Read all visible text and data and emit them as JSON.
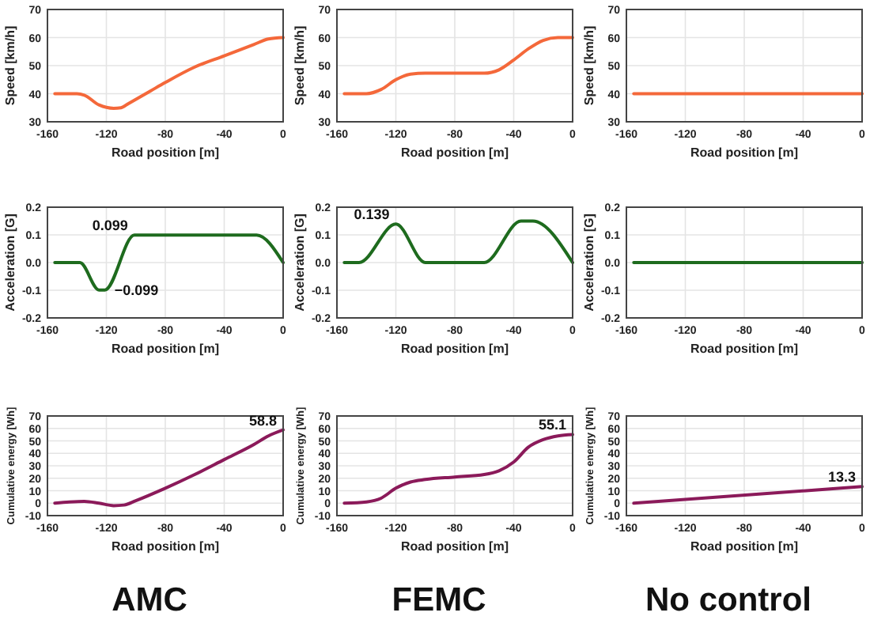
{
  "chart_data": [
    {
      "type": "line",
      "xlabel": "Road position [m]",
      "ylabel": "Speed [km/h]",
      "xlim": [
        -160,
        0
      ],
      "xticks": [
        -160,
        -120,
        -80,
        -40,
        0
      ],
      "ylim": [
        30,
        70
      ],
      "yticks": [
        30,
        40,
        50,
        60,
        70
      ],
      "grid": true,
      "series": [
        {
          "color": "#f4683a",
          "x": [
            -155,
            -140,
            -135,
            -125,
            -115,
            -110,
            -105,
            -90,
            -80,
            -60,
            -40,
            -20,
            -10,
            0
          ],
          "values": [
            40,
            40,
            39.5,
            36,
            34.8,
            35,
            36.5,
            41,
            44,
            49.5,
            53.5,
            57.5,
            59.5,
            60
          ]
        }
      ]
    },
    {
      "type": "line",
      "xlabel": "Road position [m]",
      "ylabel": "Speed [km/h]",
      "xlim": [
        -160,
        0
      ],
      "xticks": [
        -160,
        -120,
        -80,
        -40,
        0
      ],
      "ylim": [
        30,
        70
      ],
      "yticks": [
        30,
        40,
        50,
        60,
        70
      ],
      "grid": true,
      "series": [
        {
          "color": "#f4683a",
          "x": [
            -155,
            -140,
            -130,
            -120,
            -110,
            -100,
            -60,
            -50,
            -40,
            -30,
            -20,
            -10,
            0
          ],
          "values": [
            40,
            40,
            41.5,
            45,
            47,
            47.3,
            47.3,
            48.5,
            52,
            56,
            59,
            60,
            60
          ]
        }
      ]
    },
    {
      "type": "line",
      "xlabel": "Road position [m]",
      "ylabel": "Speed [km/h]",
      "xlim": [
        -160,
        0
      ],
      "xticks": [
        -160,
        -120,
        -80,
        -40,
        0
      ],
      "ylim": [
        30,
        70
      ],
      "yticks": [
        30,
        40,
        50,
        60,
        70
      ],
      "grid": true,
      "series": [
        {
          "color": "#f4683a",
          "x": [
            -155,
            0
          ],
          "values": [
            40,
            40
          ]
        }
      ]
    },
    {
      "type": "line",
      "xlabel": "Road position [m]",
      "ylabel": "Acceleration [G]",
      "xlim": [
        -160,
        0
      ],
      "xticks": [
        -160,
        -120,
        -80,
        -40,
        0
      ],
      "ylim": [
        -0.2,
        0.2
      ],
      "yticks": [
        {
          "value": -0.2,
          "label": "-0.2"
        },
        {
          "value": -0.1,
          "label": "-0.1"
        },
        {
          "value": 0,
          "label": "0.0"
        },
        {
          "value": 0.1,
          "label": "0.1"
        },
        {
          "value": 0.2,
          "label": "0.2"
        }
      ],
      "grid": true,
      "series": [
        {
          "color": "#1e6b1e",
          "x": [
            -155,
            -138,
            -125,
            -121,
            -101,
            -18,
            0
          ],
          "values": [
            0,
            0,
            -0.099,
            -0.099,
            0.099,
            0.099,
            0
          ]
        }
      ],
      "annotations": [
        {
          "text": "0.099",
          "x": -101,
          "y": 0.099
        },
        {
          "text": "−0.099",
          "x": -121,
          "y": -0.099
        }
      ]
    },
    {
      "type": "line",
      "xlabel": "Road position [m]",
      "ylabel": "Acceleration [G]",
      "xlim": [
        -160,
        0
      ],
      "xticks": [
        -160,
        -120,
        -80,
        -40,
        0
      ],
      "ylim": [
        -0.2,
        0.2
      ],
      "yticks": [
        {
          "value": -0.2,
          "label": "-0.2"
        },
        {
          "value": -0.1,
          "label": "-0.1"
        },
        {
          "value": 0,
          "label": "0.0"
        },
        {
          "value": 0.1,
          "label": "0.1"
        },
        {
          "value": 0.2,
          "label": "0.2"
        }
      ],
      "grid": true,
      "series": [
        {
          "color": "#1e6b1e",
          "x": [
            -155,
            -145,
            -120,
            -100,
            -60,
            -35,
            -27,
            0
          ],
          "values": [
            0,
            0,
            0.139,
            0,
            0,
            0.15,
            0.15,
            0
          ]
        }
      ],
      "annotations": [
        {
          "text": "0.139",
          "x": -120,
          "y": 0.139
        }
      ]
    },
    {
      "type": "line",
      "xlabel": "Road position [m]",
      "ylabel": "Acceleration [G]",
      "xlim": [
        -160,
        0
      ],
      "xticks": [
        -160,
        -120,
        -80,
        -40,
        0
      ],
      "ylim": [
        -0.2,
        0.2
      ],
      "yticks": [
        {
          "value": -0.2,
          "label": "-0.2"
        },
        {
          "value": -0.1,
          "label": "-0.1"
        },
        {
          "value": 0,
          "label": "0.0"
        },
        {
          "value": 0.1,
          "label": "0.1"
        },
        {
          "value": 0.2,
          "label": "0.2"
        }
      ],
      "grid": true,
      "series": [
        {
          "color": "#1e6b1e",
          "x": [
            -155,
            0
          ],
          "values": [
            0,
            0
          ]
        }
      ]
    },
    {
      "type": "line",
      "xlabel": "Road position [m]",
      "ylabel": "Cumulative energy [Wh]",
      "xlim": [
        -160,
        0
      ],
      "xticks": [
        -160,
        -120,
        -80,
        -40,
        0
      ],
      "ylim": [
        -10,
        70
      ],
      "yticks": [
        -10,
        0,
        10,
        20,
        30,
        40,
        50,
        60,
        70
      ],
      "grid": true,
      "series": [
        {
          "color": "#8b1a5a",
          "x": [
            -155,
            -145,
            -135,
            -125,
            -115,
            -108,
            -100,
            -80,
            -60,
            -40,
            -20,
            -10,
            0
          ],
          "values": [
            0,
            1,
            1.5,
            0,
            -2,
            -1.5,
            2,
            12,
            23,
            35,
            47,
            54,
            58.8
          ]
        }
      ],
      "annotations": [
        {
          "text": "58.8",
          "x": 0,
          "y": 58.8
        },
        "AMC"
      ]
    },
    {
      "type": "line",
      "xlabel": "Road position [m]",
      "ylabel": "Cumulative energy [Wh]",
      "xlim": [
        -160,
        0
      ],
      "xticks": [
        -160,
        -120,
        -80,
        -40,
        0
      ],
      "ylim": [
        -10,
        70
      ],
      "yticks": [
        -10,
        0,
        10,
        20,
        30,
        40,
        50,
        60,
        70
      ],
      "grid": true,
      "series": [
        {
          "color": "#8b1a5a",
          "x": [
            -155,
            -140,
            -130,
            -120,
            -110,
            -100,
            -80,
            -60,
            -50,
            -40,
            -30,
            -20,
            -10,
            0
          ],
          "values": [
            0,
            1,
            4,
            12,
            17,
            19,
            21,
            23,
            26,
            33,
            45,
            51,
            54,
            55.1
          ]
        }
      ],
      "annotations": [
        {
          "text": "55.1",
          "x": 0,
          "y": 55.1
        },
        "FEMC"
      ]
    },
    {
      "type": "line",
      "xlabel": "Road position [m]",
      "ylabel": "Cumulative energy [Wh]",
      "xlim": [
        -160,
        0
      ],
      "xticks": [
        -160,
        -120,
        -80,
        -40,
        0
      ],
      "ylim": [
        -10,
        70
      ],
      "yticks": [
        -10,
        0,
        10,
        20,
        30,
        40,
        50,
        60,
        70
      ],
      "grid": true,
      "series": [
        {
          "color": "#8b1a5a",
          "x": [
            -155,
            0
          ],
          "values": [
            0,
            13.3
          ]
        }
      ],
      "annotations": [
        {
          "text": "13.3",
          "x": 0,
          "y": 13.3
        },
        "No control"
      ]
    }
  ]
}
